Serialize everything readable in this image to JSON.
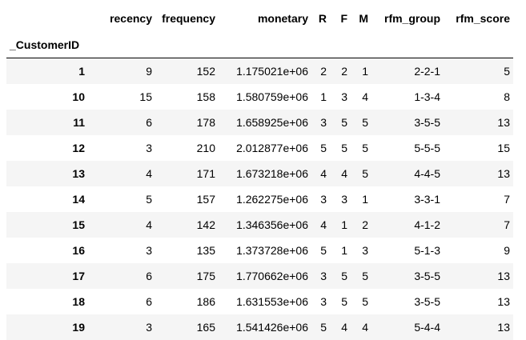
{
  "table": {
    "columns": [
      "recency",
      "frequency",
      "monetary",
      "R",
      "F",
      "M",
      "rfm_group",
      "rfm_score"
    ],
    "index_name": "_CustomerID",
    "rows": [
      {
        "index": "1",
        "cells": [
          "9",
          "152",
          "1.175021e+06",
          "2",
          "2",
          "1",
          "2-2-1",
          "5"
        ]
      },
      {
        "index": "10",
        "cells": [
          "15",
          "158",
          "1.580759e+06",
          "1",
          "3",
          "4",
          "1-3-4",
          "8"
        ]
      },
      {
        "index": "11",
        "cells": [
          "6",
          "178",
          "1.658925e+06",
          "3",
          "5",
          "5",
          "3-5-5",
          "13"
        ]
      },
      {
        "index": "12",
        "cells": [
          "3",
          "210",
          "2.012877e+06",
          "5",
          "5",
          "5",
          "5-5-5",
          "15"
        ]
      },
      {
        "index": "13",
        "cells": [
          "4",
          "171",
          "1.673218e+06",
          "4",
          "4",
          "5",
          "4-4-5",
          "13"
        ]
      },
      {
        "index": "14",
        "cells": [
          "5",
          "157",
          "1.262275e+06",
          "3",
          "3",
          "1",
          "3-3-1",
          "7"
        ]
      },
      {
        "index": "15",
        "cells": [
          "4",
          "142",
          "1.346356e+06",
          "4",
          "1",
          "2",
          "4-1-2",
          "7"
        ]
      },
      {
        "index": "16",
        "cells": [
          "3",
          "135",
          "1.373728e+06",
          "5",
          "1",
          "3",
          "5-1-3",
          "9"
        ]
      },
      {
        "index": "17",
        "cells": [
          "6",
          "175",
          "1.770662e+06",
          "3",
          "5",
          "5",
          "3-5-5",
          "13"
        ]
      },
      {
        "index": "18",
        "cells": [
          "6",
          "186",
          "1.631553e+06",
          "3",
          "5",
          "5",
          "3-5-5",
          "13"
        ]
      },
      {
        "index": "19",
        "cells": [
          "3",
          "165",
          "1.541426e+06",
          "5",
          "4",
          "4",
          "5-4-4",
          "13"
        ]
      }
    ]
  },
  "colors": {
    "stripe": "#f5f5f5",
    "background": "#ffffff",
    "text": "#000000",
    "header_rule": "#000000"
  }
}
